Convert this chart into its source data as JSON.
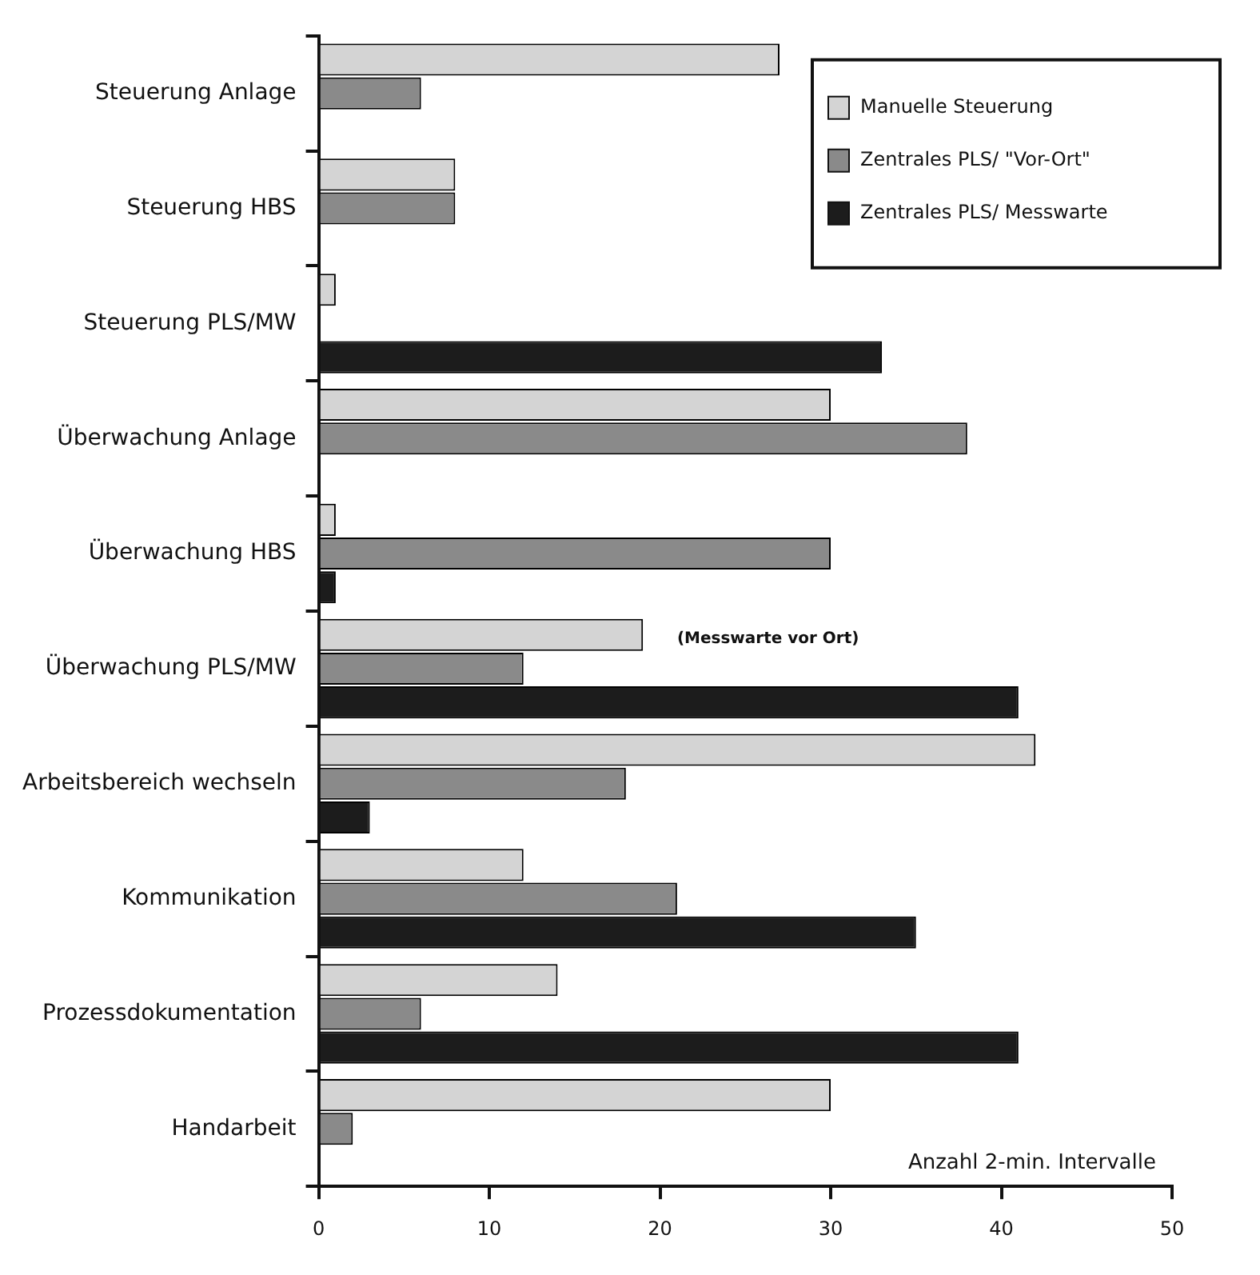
{
  "chart_data": {
    "type": "bar",
    "orientation": "horizontal",
    "xlabel": "Anzahl 2-min. Intervalle",
    "categories": [
      "Steuerung Anlage",
      "Steuerung HBS",
      "Steuerung PLS/MW",
      "Überwachung Anlage",
      "Überwachung HBS",
      "Überwachung PLS/MW",
      "Arbeitsbereich wechseln",
      "Kommunikation",
      "Prozessdokumentation",
      "Handarbeit"
    ],
    "series": [
      {
        "name": "Manuelle Steuerung",
        "color": "#d4d4d4",
        "values": [
          27,
          8,
          1,
          30,
          1,
          19,
          42,
          12,
          14,
          30
        ]
      },
      {
        "name": "Zentrales PLS/ \"Vor-Ort\"",
        "color": "#8a8a8a",
        "values": [
          6,
          8,
          null,
          38,
          30,
          12,
          18,
          21,
          6,
          2
        ]
      },
      {
        "name": "Zentrales PLS/ Messwarte",
        "color": "#1c1c1c",
        "values": [
          null,
          null,
          33,
          null,
          1,
          41,
          3,
          35,
          41,
          0
        ]
      }
    ],
    "xlim": [
      0,
      50
    ],
    "xticks": [
      0,
      10,
      20,
      30,
      40,
      50
    ],
    "grid": false,
    "legend": "top right",
    "annotations": [
      "(Messwarte vor Ort)"
    ]
  }
}
